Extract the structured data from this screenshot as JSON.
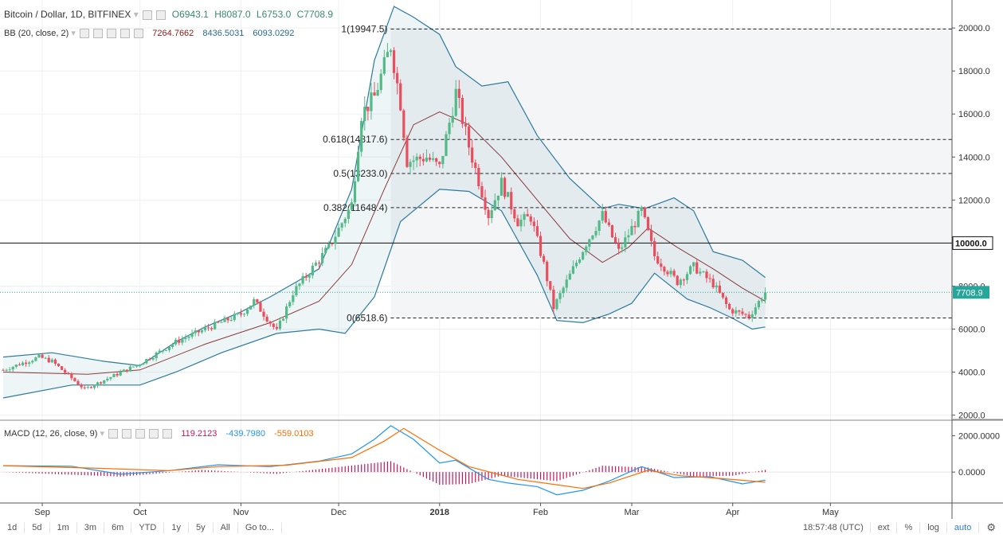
{
  "legend": {
    "symbol": "Bitcoin / Dollar, 1D, BITFINEX",
    "open": "O6943.1",
    "high": "H8087.0",
    "low": "L6753.0",
    "close": "C7708.9",
    "bb_label": "BB (20, close, 2)",
    "bb_basis": "7264.7662",
    "bb_upper": "8436.5031",
    "bb_lower": "6093.0292",
    "macd_label": "MACD (12, 26, close, 9)",
    "macd_hist": "119.2123",
    "macd_line": "-439.7980",
    "macd_signal": "-559.0103"
  },
  "colors": {
    "up": "#53b987",
    "down": "#eb4d5c",
    "bb": "#2b7b9e",
    "basis": "#8b3a3a",
    "macd": "#2196f3",
    "signal": "#ff6d00",
    "hist": "#c2185b"
  },
  "toolbar": {
    "ranges": [
      "1d",
      "5d",
      "1m",
      "3m",
      "6m",
      "YTD",
      "1y",
      "5y",
      "All"
    ],
    "goto": "Go to...",
    "time": "18:57:48 (UTC)",
    "ext": "ext",
    "percent": "%",
    "log": "log",
    "auto": "auto",
    "settings_icon": "gear-icon"
  },
  "chart_data": {
    "type": "candlestick",
    "x_ticks": [
      "Sep",
      "Oct",
      "Nov",
      "Dec",
      "2018",
      "Feb",
      "Mar",
      "Apr",
      "May"
    ],
    "y_ticks": [
      "2000.0",
      "4000.0",
      "6000.0",
      "8000.0",
      "10000.0",
      "12000.0",
      "14000.0",
      "16000.0",
      "18000.0",
      "20000.0"
    ],
    "ylim": [
      1800,
      21300
    ],
    "last_price_label": "7708.9",
    "last_price": 7708.9,
    "horizontal_line_label": "10000.0",
    "horizontal_line": 10000,
    "fib_levels": [
      {
        "label": "1(19947.5)",
        "value": 19947.5
      },
      {
        "label": "0.618(14817.6)",
        "value": 14817.6
      },
      {
        "label": "0.5(13233.0)",
        "value": 13233.0
      },
      {
        "label": "0.382(11648.4)",
        "value": 11648.4
      },
      {
        "label": "0(6518.6)",
        "value": 6518.6
      }
    ],
    "price_path": [
      [
        "2017-08-20",
        4100
      ],
      [
        "2017-08-31",
        4700
      ],
      [
        "2017-09-04",
        4500
      ],
      [
        "2017-09-14",
        3200
      ],
      [
        "2017-09-21",
        3700
      ],
      [
        "2017-10-01",
        4400
      ],
      [
        "2017-10-12",
        5400
      ],
      [
        "2017-10-21",
        6000
      ],
      [
        "2017-11-01",
        6700
      ],
      [
        "2017-11-05",
        7300
      ],
      [
        "2017-11-12",
        5900
      ],
      [
        "2017-11-17",
        7700
      ],
      [
        "2017-11-28",
        9800
      ],
      [
        "2017-12-05",
        11800
      ],
      [
        "2017-12-08",
        16000
      ],
      [
        "2017-12-12",
        16800
      ],
      [
        "2017-12-17",
        19200
      ],
      [
        "2017-12-20",
        16500
      ],
      [
        "2017-12-22",
        13800
      ],
      [
        "2017-12-28",
        14000
      ],
      [
        "2018-01-01",
        13500
      ],
      [
        "2018-01-06",
        17000
      ],
      [
        "2018-01-10",
        14500
      ],
      [
        "2018-01-16",
        11300
      ],
      [
        "2018-01-20",
        12800
      ],
      [
        "2018-01-25",
        11000
      ],
      [
        "2018-01-29",
        11200
      ],
      [
        "2018-02-02",
        9000
      ],
      [
        "2018-02-05",
        7000
      ],
      [
        "2018-02-10",
        8500
      ],
      [
        "2018-02-15",
        10000
      ],
      [
        "2018-02-20",
        11300
      ],
      [
        "2018-02-25",
        9600
      ],
      [
        "2018-03-04",
        11500
      ],
      [
        "2018-03-08",
        9400
      ],
      [
        "2018-03-15",
        8200
      ],
      [
        "2018-03-20",
        8900
      ],
      [
        "2018-03-26",
        8100
      ],
      [
        "2018-03-31",
        6900
      ],
      [
        "2018-04-06",
        6600
      ],
      [
        "2018-04-11",
        7709
      ]
    ],
    "bollinger_bands": {
      "upper": [
        [
          "2017-08-20",
          4700
        ],
        [
          "2017-09-04",
          4900
        ],
        [
          "2017-09-20",
          4500
        ],
        [
          "2017-10-01",
          4300
        ],
        [
          "2017-10-12",
          5400
        ],
        [
          "2017-10-21",
          6100
        ],
        [
          "2017-11-01",
          6800
        ],
        [
          "2017-11-10",
          7500
        ],
        [
          "2017-11-25",
          8800
        ],
        [
          "2017-12-05",
          12500
        ],
        [
          "2017-12-12",
          18500
        ],
        [
          "2017-12-18",
          21000
        ],
        [
          "2017-12-24",
          20500
        ],
        [
          "2018-01-01",
          19700
        ],
        [
          "2018-01-06",
          18200
        ],
        [
          "2018-01-14",
          17300
        ],
        [
          "2018-01-22",
          17500
        ],
        [
          "2018-01-31",
          15000
        ],
        [
          "2018-02-10",
          13000
        ],
        [
          "2018-02-20",
          11600
        ],
        [
          "2018-02-25",
          11800
        ],
        [
          "2018-03-05",
          11600
        ],
        [
          "2018-03-14",
          12100
        ],
        [
          "2018-03-20",
          11500
        ],
        [
          "2018-03-26",
          9600
        ],
        [
          "2018-04-04",
          9200
        ],
        [
          "2018-04-11",
          8400
        ]
      ],
      "basis": [
        [
          "2017-08-20",
          4000
        ],
        [
          "2017-09-15",
          3900
        ],
        [
          "2017-10-01",
          4100
        ],
        [
          "2017-10-21",
          5300
        ],
        [
          "2017-11-10",
          6300
        ],
        [
          "2017-11-25",
          7300
        ],
        [
          "2017-12-05",
          9000
        ],
        [
          "2017-12-15",
          12500
        ],
        [
          "2017-12-24",
          15500
        ],
        [
          "2018-01-01",
          16100
        ],
        [
          "2018-01-10",
          15500
        ],
        [
          "2018-01-20",
          14000
        ],
        [
          "2018-01-31",
          12000
        ],
        [
          "2018-02-10",
          10200
        ],
        [
          "2018-02-20",
          9100
        ],
        [
          "2018-02-28",
          9800
        ],
        [
          "2018-03-06",
          10700
        ],
        [
          "2018-03-15",
          9800
        ],
        [
          "2018-03-26",
          8800
        ],
        [
          "2018-04-04",
          7900
        ],
        [
          "2018-04-11",
          7300
        ]
      ],
      "lower": [
        [
          "2017-08-20",
          2800
        ],
        [
          "2017-09-10",
          3400
        ],
        [
          "2017-10-01",
          3400
        ],
        [
          "2017-10-12",
          4000
        ],
        [
          "2017-10-26",
          4900
        ],
        [
          "2017-11-12",
          5800
        ],
        [
          "2017-11-25",
          6000
        ],
        [
          "2017-12-03",
          5800
        ],
        [
          "2017-12-12",
          7500
        ],
        [
          "2017-12-20",
          11000
        ],
        [
          "2018-01-01",
          12500
        ],
        [
          "2018-01-10",
          12400
        ],
        [
          "2018-01-20",
          11500
        ],
        [
          "2018-01-31",
          8500
        ],
        [
          "2018-02-06",
          6400
        ],
        [
          "2018-02-14",
          6300
        ],
        [
          "2018-02-22",
          6700
        ],
        [
          "2018-03-01",
          7200
        ],
        [
          "2018-03-08",
          8600
        ],
        [
          "2018-03-18",
          7400
        ],
        [
          "2018-03-25",
          7000
        ],
        [
          "2018-04-01",
          6500
        ],
        [
          "2018-04-07",
          6000
        ],
        [
          "2018-04-11",
          6100
        ]
      ]
    },
    "macd_panel": {
      "y_ticks": [
        "2000.0000",
        "0.0000"
      ],
      "ylim": [
        -1700,
        2850
      ],
      "macd_line": [
        [
          "2017-08-20",
          350
        ],
        [
          "2017-09-10",
          320
        ],
        [
          "2017-09-25",
          -120
        ],
        [
          "2017-10-10",
          80
        ],
        [
          "2017-10-25",
          400
        ],
        [
          "2017-11-10",
          300
        ],
        [
          "2017-11-25",
          600
        ],
        [
          "2017-12-05",
          1000
        ],
        [
          "2017-12-12",
          1800
        ],
        [
          "2017-12-17",
          2550
        ],
        [
          "2017-12-24",
          1800
        ],
        [
          "2018-01-01",
          500
        ],
        [
          "2018-01-06",
          650
        ],
        [
          "2018-01-16",
          -400
        ],
        [
          "2018-01-22",
          -600
        ],
        [
          "2018-01-31",
          -800
        ],
        [
          "2018-02-06",
          -1250
        ],
        [
          "2018-02-14",
          -1000
        ],
        [
          "2018-02-22",
          -500
        ],
        [
          "2018-03-04",
          300
        ],
        [
          "2018-03-14",
          -300
        ],
        [
          "2018-03-25",
          -250
        ],
        [
          "2018-04-04",
          -650
        ],
        [
          "2018-04-11",
          -440
        ]
      ],
      "signal_line": [
        [
          "2017-08-20",
          350
        ],
        [
          "2017-09-20",
          200
        ],
        [
          "2017-10-10",
          80
        ],
        [
          "2017-10-25",
          300
        ],
        [
          "2017-11-15",
          380
        ],
        [
          "2017-12-05",
          800
        ],
        [
          "2017-12-15",
          1700
        ],
        [
          "2017-12-21",
          2400
        ],
        [
          "2018-01-01",
          1200
        ],
        [
          "2018-01-10",
          300
        ],
        [
          "2018-01-25",
          -400
        ],
        [
          "2018-02-06",
          -700
        ],
        [
          "2018-02-14",
          -900
        ],
        [
          "2018-02-22",
          -600
        ],
        [
          "2018-03-06",
          100
        ],
        [
          "2018-03-16",
          -200
        ],
        [
          "2018-03-28",
          -350
        ],
        [
          "2018-04-11",
          -559
        ]
      ],
      "histogram_envelope": [
        [
          "2017-08-20",
          0
        ],
        [
          "2017-09-25",
          -250
        ],
        [
          "2017-10-20",
          120
        ],
        [
          "2017-11-12",
          -100
        ],
        [
          "2017-11-28",
          220
        ],
        [
          "2017-12-17",
          600
        ],
        [
          "2018-01-01",
          -700
        ],
        [
          "2018-01-10",
          -650
        ],
        [
          "2018-01-20",
          -200
        ],
        [
          "2018-02-06",
          -500
        ],
        [
          "2018-02-20",
          350
        ],
        [
          "2018-03-06",
          250
        ],
        [
          "2018-03-20",
          -250
        ],
        [
          "2018-04-01",
          -200
        ],
        [
          "2018-04-11",
          119
        ]
      ]
    }
  }
}
